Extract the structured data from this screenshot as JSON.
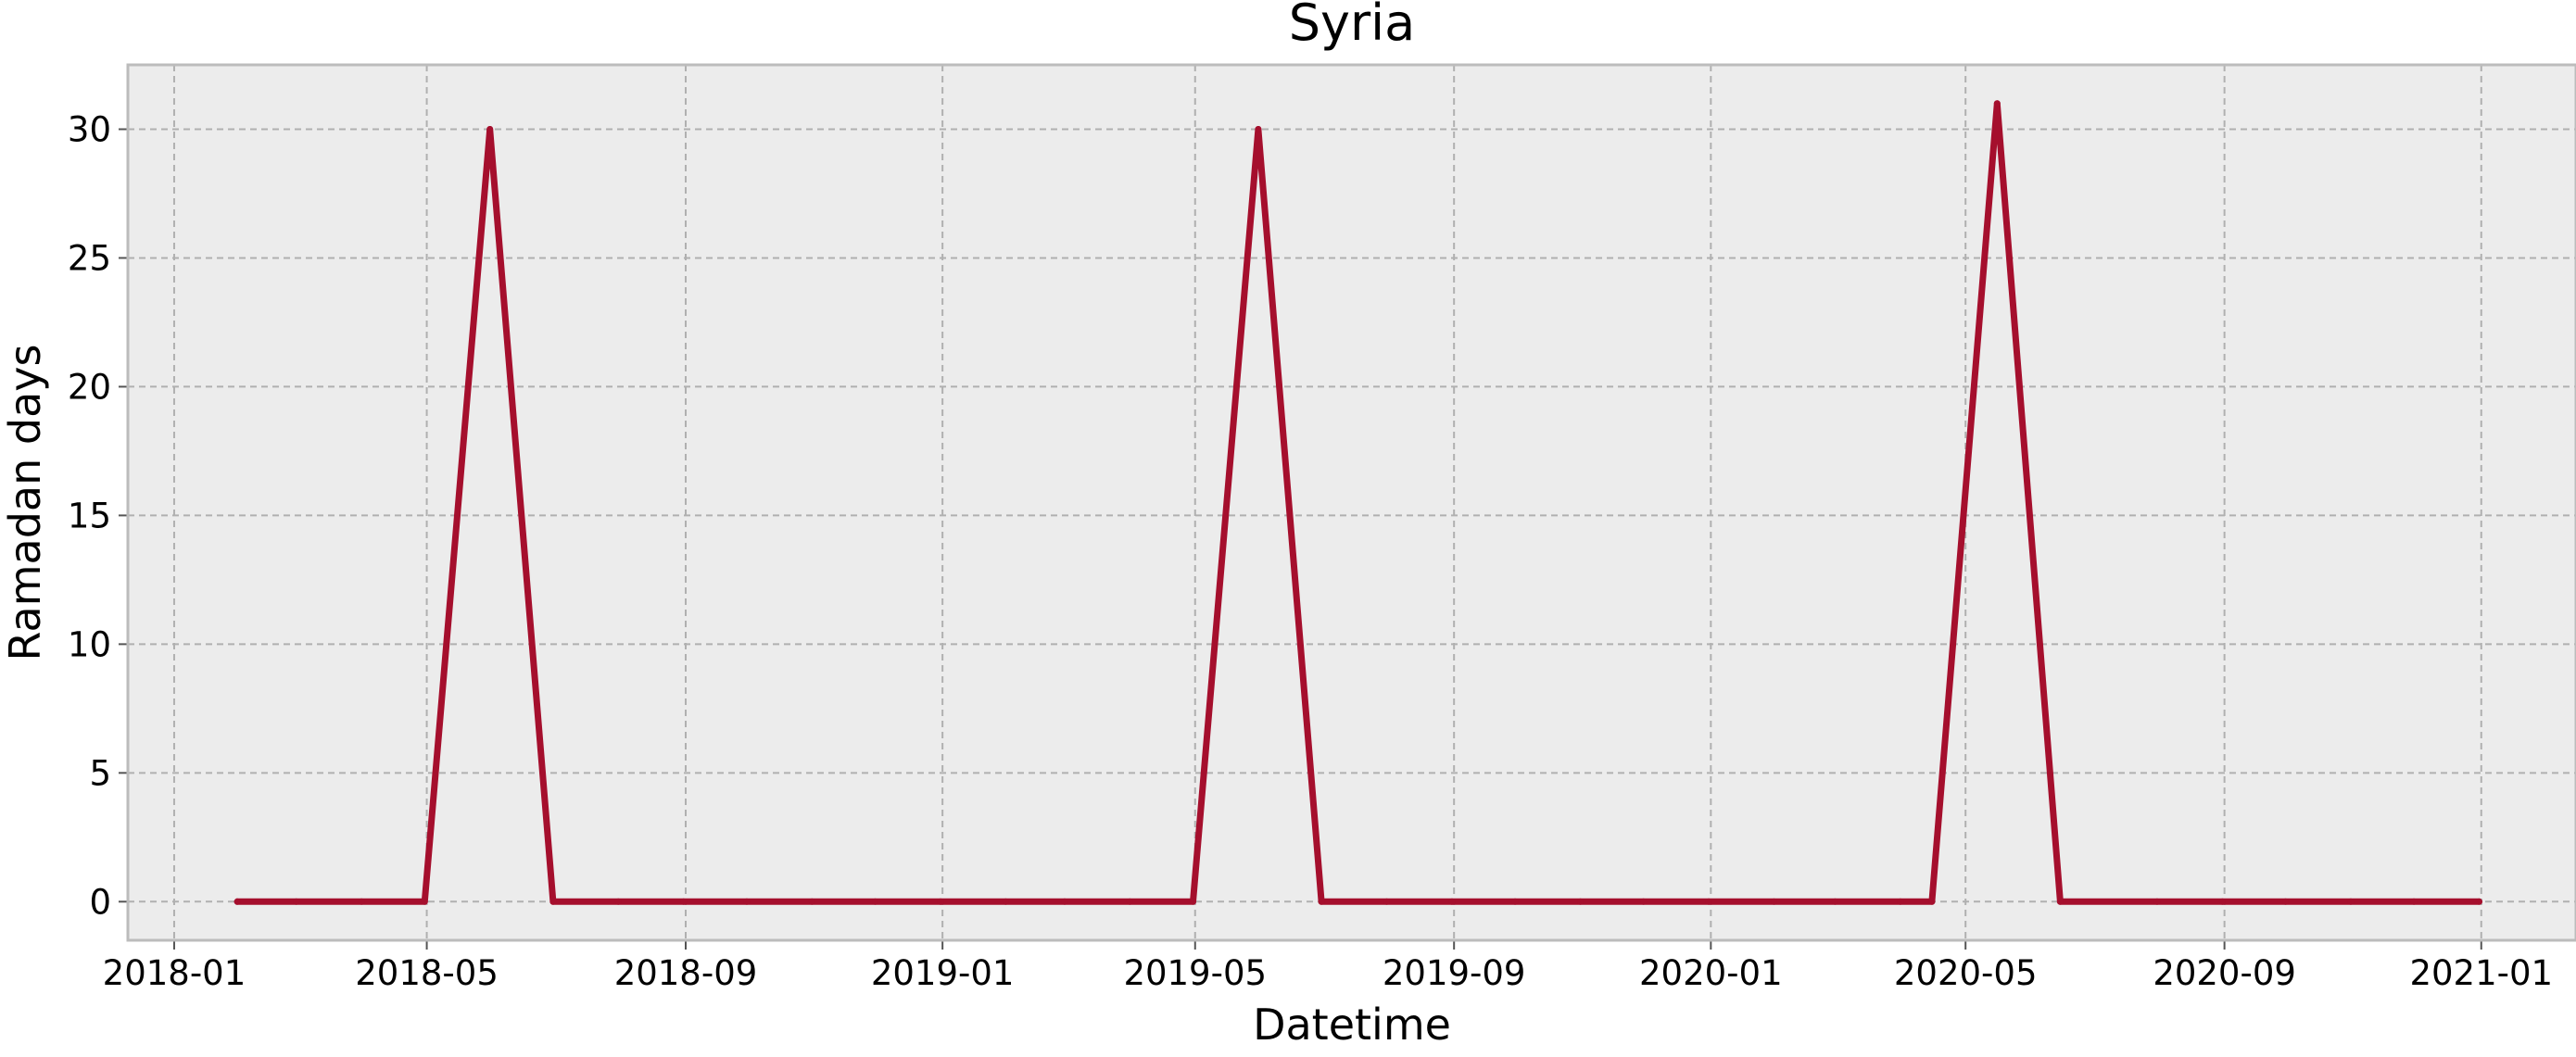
{
  "chart_data": {
    "type": "line",
    "title": "Syria",
    "xlabel": "Datetime",
    "ylabel": "Ramadan days",
    "x_axis_type": "date",
    "xlim": [
      "2017-12-10",
      "2021-02-15"
    ],
    "ylim": [
      -1.5,
      32.5
    ],
    "x_ticks": [
      "2018-01-01",
      "2018-05-01",
      "2018-09-01",
      "2019-01-01",
      "2019-05-01",
      "2019-09-01",
      "2020-01-01",
      "2020-05-01",
      "2020-09-01",
      "2021-01-01"
    ],
    "x_tick_labels": [
      "2018-01",
      "2018-05",
      "2018-09",
      "2019-01",
      "2019-05",
      "2019-09",
      "2020-01",
      "2020-05",
      "2020-09",
      "2021-01"
    ],
    "y_ticks": [
      0,
      5,
      10,
      15,
      20,
      25,
      30
    ],
    "y_tick_labels": [
      "0",
      "5",
      "10",
      "15",
      "20",
      "25",
      "30"
    ],
    "grid": true,
    "background_color": "#ececec",
    "series": [
      {
        "color": "#a50f2d",
        "points": [
          {
            "x": "2018-01-31",
            "y": 0
          },
          {
            "x": "2018-02-28",
            "y": 0
          },
          {
            "x": "2018-03-31",
            "y": 0
          },
          {
            "x": "2018-04-30",
            "y": 0
          },
          {
            "x": "2018-05-31",
            "y": 30
          },
          {
            "x": "2018-06-30",
            "y": 0
          },
          {
            "x": "2018-07-31",
            "y": 0
          },
          {
            "x": "2018-08-31",
            "y": 0
          },
          {
            "x": "2018-09-30",
            "y": 0
          },
          {
            "x": "2018-10-31",
            "y": 0
          },
          {
            "x": "2018-11-30",
            "y": 0
          },
          {
            "x": "2018-12-31",
            "y": 0
          },
          {
            "x": "2019-01-31",
            "y": 0
          },
          {
            "x": "2019-02-28",
            "y": 0
          },
          {
            "x": "2019-03-31",
            "y": 0
          },
          {
            "x": "2019-04-30",
            "y": 0
          },
          {
            "x": "2019-05-31",
            "y": 30
          },
          {
            "x": "2019-06-30",
            "y": 0
          },
          {
            "x": "2019-07-31",
            "y": 0
          },
          {
            "x": "2019-08-31",
            "y": 0
          },
          {
            "x": "2019-09-30",
            "y": 0
          },
          {
            "x": "2019-10-31",
            "y": 0
          },
          {
            "x": "2019-11-30",
            "y": 0
          },
          {
            "x": "2019-12-31",
            "y": 0
          },
          {
            "x": "2020-01-31",
            "y": 0
          },
          {
            "x": "2020-02-29",
            "y": 0
          },
          {
            "x": "2020-03-31",
            "y": 0
          },
          {
            "x": "2020-04-15",
            "y": 0
          },
          {
            "x": "2020-05-16",
            "y": 31
          },
          {
            "x": "2020-06-15",
            "y": 0
          },
          {
            "x": "2020-07-31",
            "y": 0
          },
          {
            "x": "2020-08-31",
            "y": 0
          },
          {
            "x": "2020-09-30",
            "y": 0
          },
          {
            "x": "2020-10-31",
            "y": 0
          },
          {
            "x": "2020-11-30",
            "y": 0
          },
          {
            "x": "2020-12-31",
            "y": 0
          }
        ]
      }
    ]
  }
}
